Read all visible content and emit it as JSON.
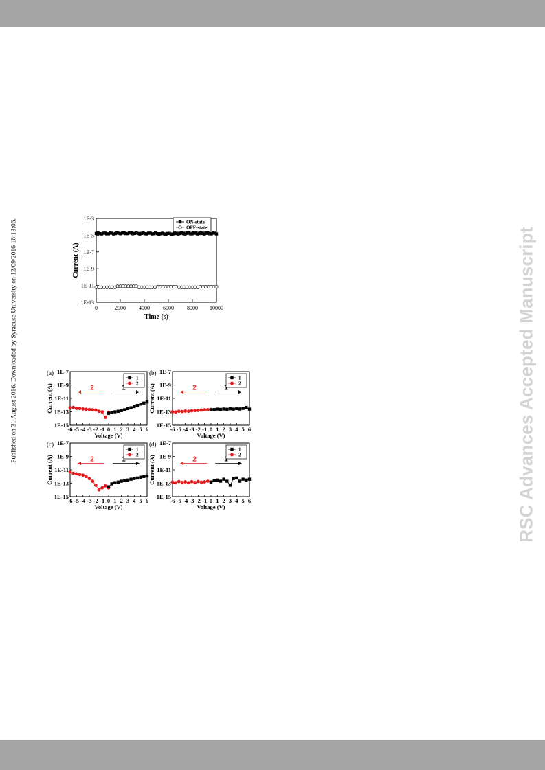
{
  "page": {
    "side_note": "Published on 31 August 2016. Downloaded by Syracuse University on 12/09/2016 16:13:06.",
    "watermark": "RSC Advances Accepted Manuscript"
  },
  "colors": {
    "header_bar": "#a6a6a6",
    "series_1": "#000000",
    "series_2": "#e31a1c",
    "watermark": "#d3d3d3"
  },
  "chart_data": [
    {
      "type": "scatter",
      "title": "",
      "xlabel": "Time (s)",
      "ylabel": "Current (A)",
      "log_y": true,
      "xlim": [
        0,
        10000
      ],
      "ylim": [
        1e-13,
        0.001
      ],
      "x_ticks": [
        "0",
        "2000",
        "4000",
        "6000",
        "8000",
        "10000"
      ],
      "y_ticks": [
        "1E-3",
        "1E-5",
        "1E-7",
        "1E-9",
        "1E-11",
        "1E-13"
      ],
      "legend_position": "top-right",
      "series": [
        {
          "name": "ON-state",
          "marker": "filled-square",
          "x_range": [
            0,
            10000
          ],
          "values": [
            1.6e-05,
            1.7e-05,
            1.6e-05,
            1.5e-05,
            1.6e-05,
            1.6e-05
          ]
        },
        {
          "name": "OFF-state",
          "marker": "open-circle",
          "x_range": [
            0,
            10000
          ],
          "values": [
            6e-12,
            8e-12,
            6e-12,
            7e-12,
            6e-12,
            7e-12
          ]
        }
      ]
    },
    {
      "panel": "(a)",
      "type": "scatter",
      "xlabel": "Voltage (V)",
      "ylabel": "Current (A)",
      "log_y": true,
      "xlim": [
        -6,
        6
      ],
      "ylim": [
        1e-15,
        1e-07
      ],
      "x_ticks": [
        "-6",
        "-5",
        "-4",
        "-3",
        "-2",
        "-1",
        "0",
        "1",
        "2",
        "3",
        "4",
        "5",
        "6"
      ],
      "y_ticks": [
        "1E-7",
        "1E-9",
        "1E-11",
        "1E-13",
        "1E-15"
      ],
      "legend_position": "top-right",
      "arrow_labels": [
        "1",
        "2"
      ],
      "series": [
        {
          "name": "1",
          "x": [
            0,
            0.5,
            1,
            1.5,
            2,
            2.5,
            3,
            3.5,
            4,
            4.5,
            5,
            5.5,
            6
          ],
          "y": [
            6e-14,
            8e-14,
            1e-13,
            1.2e-13,
            1.5e-13,
            2e-13,
            3e-13,
            4e-13,
            6e-13,
            9e-13,
            1.4e-12,
            2e-12,
            3e-12
          ]
        },
        {
          "name": "2",
          "x": [
            -6,
            -5.5,
            -5,
            -4.5,
            -4,
            -3.5,
            -3,
            -2.5,
            -2,
            -1.5,
            -1,
            -0.5,
            0
          ],
          "y": [
            4e-13,
            4.5e-13,
            3.2e-13,
            3e-13,
            2.6e-13,
            2.4e-13,
            2.2e-13,
            2e-13,
            1.8e-13,
            1.2e-13,
            1e-13,
            1.5e-14,
            8e-14
          ]
        }
      ]
    },
    {
      "panel": "(b)",
      "type": "scatter",
      "xlabel": "Voltage (V)",
      "ylabel": "Current (A)",
      "log_y": true,
      "xlim": [
        -6,
        6
      ],
      "ylim": [
        1e-15,
        1e-07
      ],
      "x_ticks": [
        "-6",
        "-5",
        "-4",
        "-3",
        "-2",
        "-1",
        "0",
        "1",
        "2",
        "3",
        "4",
        "5",
        "6"
      ],
      "y_ticks": [
        "1E-7",
        "1E-9",
        "1E-11",
        "1E-13",
        "1E-15"
      ],
      "legend_position": "top-right",
      "arrow_labels": [
        "1",
        "2"
      ],
      "series": [
        {
          "name": "1",
          "x": [
            0,
            0.5,
            1,
            1.5,
            2,
            2.5,
            3,
            3.5,
            4,
            4.5,
            5,
            5.5,
            6
          ],
          "y": [
            2e-13,
            2.2e-13,
            2.5e-13,
            2.3e-13,
            2.6e-13,
            2.4e-13,
            2.8e-13,
            2.5e-13,
            3e-13,
            2.6e-13,
            3.2e-13,
            4.5e-13,
            2.5e-13
          ]
        },
        {
          "name": "2",
          "x": [
            -6,
            -5.5,
            -5,
            -4.5,
            -4,
            -3.5,
            -3,
            -2.5,
            -2,
            -1.5,
            -1,
            -0.5,
            0
          ],
          "y": [
            1e-13,
            9e-14,
            1.2e-13,
            1.1e-13,
            1.3e-13,
            1.2e-13,
            1.4e-13,
            1.5e-13,
            1.6e-13,
            1.8e-13,
            2e-13,
            2.1e-13,
            2.2e-13
          ]
        }
      ]
    },
    {
      "panel": "(c)",
      "type": "scatter",
      "xlabel": "Voltage (V)",
      "ylabel": "Current (A)",
      "log_y": true,
      "xlim": [
        -6,
        6
      ],
      "ylim": [
        1e-15,
        1e-07
      ],
      "x_ticks": [
        "-6",
        "-5",
        "-4",
        "-3",
        "-2",
        "-1",
        "0",
        "1",
        "2",
        "3",
        "4",
        "5",
        "6"
      ],
      "y_ticks": [
        "1E-7",
        "1E-9",
        "1E-11",
        "1E-13",
        "1E-15"
      ],
      "legend_position": "top-right",
      "arrow_labels": [
        "1",
        "2"
      ],
      "series": [
        {
          "name": "1",
          "x": [
            0,
            0.5,
            1,
            1.5,
            2,
            2.5,
            3,
            3.5,
            4,
            4.5,
            5,
            5.5,
            6
          ],
          "y": [
            3e-14,
            8e-14,
            1.2e-13,
            1.5e-13,
            2e-13,
            2.5e-13,
            3e-13,
            4e-13,
            5e-13,
            6e-13,
            8e-13,
            1e-12,
            1.2e-12
          ]
        },
        {
          "name": "2",
          "x": [
            -6,
            -5.5,
            -5,
            -4.5,
            -4,
            -3.5,
            -3,
            -2.5,
            -2,
            -1.5,
            -1,
            -0.5,
            0
          ],
          "y": [
            5e-12,
            3e-12,
            2.5e-12,
            2e-12,
            1.6e-12,
            1e-12,
            5e-13,
            2e-13,
            5e-14,
            1e-14,
            2e-14,
            4e-14,
            2e-14
          ]
        }
      ]
    },
    {
      "panel": "(d)",
      "type": "scatter",
      "xlabel": "Voltage (V)",
      "ylabel": "Current (A)",
      "log_y": true,
      "xlim": [
        -6,
        6
      ],
      "ylim": [
        1e-15,
        1e-07
      ],
      "x_ticks": [
        "-6",
        "-5",
        "-4",
        "-3",
        "-2",
        "-1",
        "0",
        "1",
        "2",
        "3",
        "4",
        "5",
        "6"
      ],
      "y_ticks": [
        "1E-7",
        "1E-9",
        "1E-11",
        "1E-13",
        "1E-15"
      ],
      "legend_position": "top-right",
      "arrow_labels": [
        "1",
        "2"
      ],
      "series": [
        {
          "name": "1",
          "x": [
            0,
            0.5,
            1,
            1.5,
            2,
            2.5,
            3,
            3.5,
            4,
            4.5,
            5,
            5.5,
            6
          ],
          "y": [
            1.5e-13,
            2.5e-13,
            3e-13,
            2e-13,
            4e-13,
            2e-13,
            5e-14,
            5e-13,
            6e-13,
            2e-13,
            4e-13,
            3e-13,
            4e-13
          ]
        },
        {
          "name": "2",
          "x": [
            -6,
            -5.5,
            -5,
            -4.5,
            -4,
            -3.5,
            -3,
            -2.5,
            -2,
            -1.5,
            -1,
            -0.5,
            0
          ],
          "y": [
            1.5e-13,
            1.2e-13,
            1.8e-13,
            1.3e-13,
            1.6e-13,
            1.2e-13,
            1.7e-13,
            1.3e-13,
            1.8e-13,
            1.4e-13,
            1.6e-13,
            2e-13,
            1.5e-13
          ]
        }
      ]
    }
  ]
}
